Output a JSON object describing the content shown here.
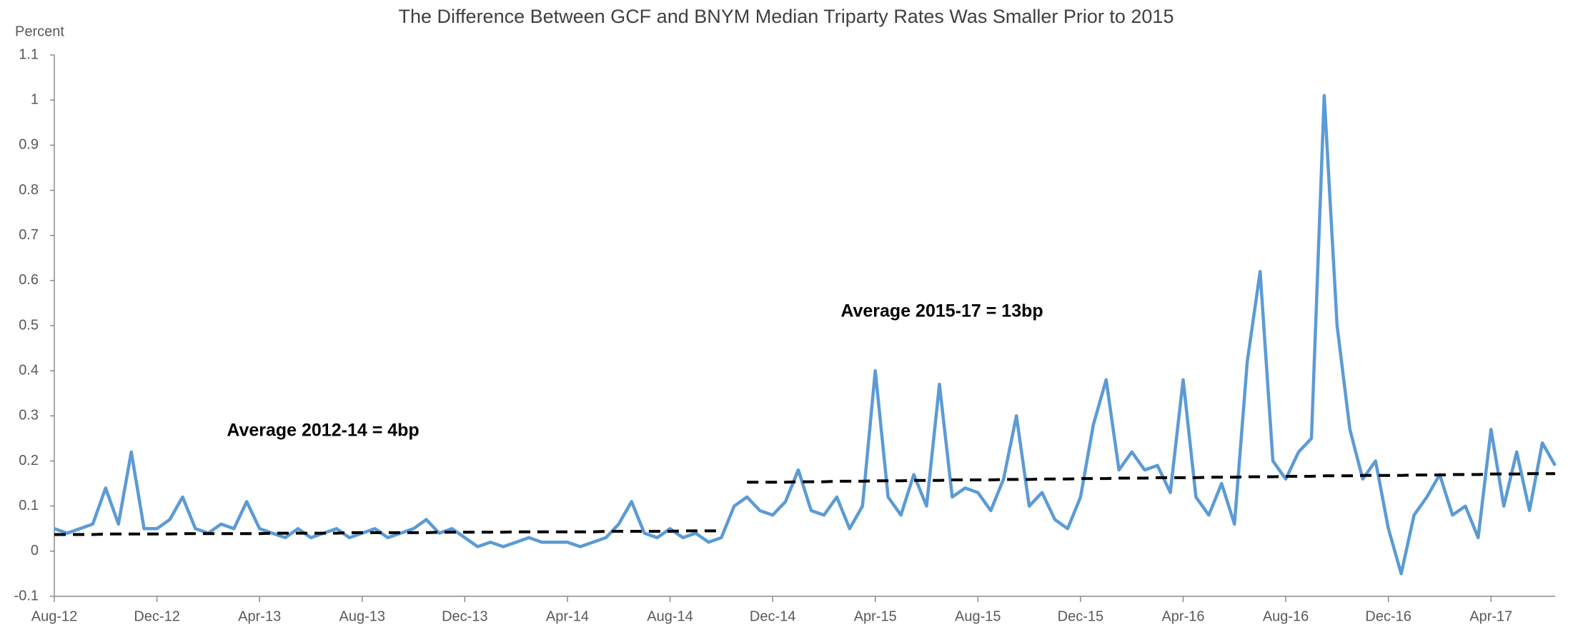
{
  "chart_data": {
    "type": "line",
    "title": "The Difference Between GCF and BNYM Median Triparty Rates Was Smaller Prior to 2015",
    "y_label": "Percent",
    "annotations": [
      "Average 2012-14 = 4bp",
      "Average 2015-17 = 13bp"
    ],
    "categories": [
      "Aug-12",
      null,
      null,
      null,
      null,
      null,
      null,
      null,
      "Dec-12",
      null,
      null,
      null,
      null,
      null,
      null,
      null,
      "Apr-13",
      null,
      null,
      null,
      null,
      null,
      null,
      null,
      "Aug-13",
      null,
      null,
      null,
      null,
      null,
      null,
      null,
      "Dec-13",
      null,
      null,
      null,
      null,
      null,
      null,
      null,
      "Apr-14",
      null,
      null,
      null,
      null,
      null,
      null,
      null,
      "Aug-14",
      null,
      null,
      null,
      null,
      null,
      null,
      null,
      "Dec-14",
      null,
      null,
      null,
      null,
      null,
      null,
      null,
      "Apr-15",
      null,
      null,
      null,
      null,
      null,
      null,
      null,
      "Aug-15",
      null,
      null,
      null,
      null,
      null,
      null,
      null,
      "Dec-15",
      null,
      null,
      null,
      null,
      null,
      null,
      null,
      "Apr-16",
      null,
      null,
      null,
      null,
      null,
      null,
      null,
      "Aug-16",
      null,
      null,
      null,
      null,
      null,
      null,
      null,
      "Dec-16",
      null,
      null,
      null,
      null,
      null,
      null,
      null,
      "Apr-17",
      null,
      null,
      null,
      null,
      null
    ],
    "series": [
      {
        "color": "#5b9bd5",
        "style": "solid",
        "values": [
          0.05,
          0.04,
          0.05,
          0.06,
          0.14,
          0.06,
          0.22,
          0.05,
          0.05,
          0.07,
          0.12,
          0.05,
          0.04,
          0.06,
          0.05,
          0.11,
          0.05,
          0.04,
          0.03,
          0.05,
          0.03,
          0.04,
          0.05,
          0.03,
          0.04,
          0.05,
          0.03,
          0.04,
          0.05,
          0.07,
          0.04,
          0.05,
          0.03,
          0.01,
          0.02,
          0.01,
          0.02,
          0.03,
          0.02,
          0.02,
          0.02,
          0.01,
          0.02,
          0.03,
          0.06,
          0.11,
          0.04,
          0.03,
          0.05,
          0.03,
          0.04,
          0.02,
          0.03,
          0.1,
          0.12,
          0.09,
          0.08,
          0.11,
          0.18,
          0.09,
          0.08,
          0.12,
          0.05,
          0.1,
          0.4,
          0.12,
          0.08,
          0.17,
          0.1,
          0.37,
          0.12,
          0.14,
          0.13,
          0.09,
          0.16,
          0.3,
          0.1,
          0.13,
          0.07,
          0.05,
          0.12,
          0.28,
          0.38,
          0.18,
          0.22,
          0.18,
          0.19,
          0.13,
          0.38,
          0.12,
          0.08,
          0.15,
          0.06,
          0.42,
          0.62,
          0.2,
          0.16,
          0.22,
          0.25,
          1.01,
          0.5,
          0.27,
          0.16,
          0.2,
          0.05,
          -0.05,
          0.08,
          0.12,
          0.17,
          0.08,
          0.1,
          0.03,
          0.27,
          0.1,
          0.22,
          0.09,
          0.24,
          0.19
        ]
      },
      {
        "color": "#000000",
        "style": "dashed",
        "values": [
          0.037,
          0.037,
          0.037,
          0.037,
          0.038,
          0.038,
          0.038,
          0.038,
          0.038,
          0.038,
          0.039,
          0.039,
          0.039,
          0.039,
          0.039,
          0.039,
          0.039,
          0.04,
          0.04,
          0.04,
          0.04,
          0.04,
          0.04,
          0.041,
          0.041,
          0.041,
          0.041,
          0.041,
          0.041,
          0.041,
          0.042,
          0.042,
          0.042,
          0.042,
          0.042,
          0.042,
          0.043,
          0.043,
          0.043,
          0.043,
          0.043,
          0.043,
          0.043,
          0.044,
          0.044,
          0.044,
          0.044,
          0.044,
          0.044,
          0.045,
          0.045,
          0.045,
          0.045,
          null,
          0.153,
          0.153,
          0.153,
          0.153,
          0.154,
          0.154,
          0.154,
          0.155,
          0.155,
          0.155,
          0.156,
          0.156,
          0.156,
          0.157,
          0.157,
          0.157,
          0.158,
          0.158,
          0.158,
          0.158,
          0.159,
          0.159,
          0.159,
          0.16,
          0.16,
          0.16,
          0.161,
          0.161,
          0.161,
          0.162,
          0.162,
          0.162,
          0.163,
          0.163,
          0.163,
          0.163,
          0.164,
          0.164,
          0.164,
          0.165,
          0.165,
          0.165,
          0.166,
          0.166,
          0.166,
          0.167,
          0.167,
          0.167,
          0.168,
          0.168,
          0.168,
          0.168,
          0.169,
          0.169,
          0.169,
          0.17,
          0.17,
          0.17,
          0.171,
          0.171,
          0.171,
          0.172,
          0.172,
          0.172
        ]
      }
    ],
    "ylim": [
      -0.1,
      1.1
    ],
    "yticks": [
      -0.1,
      0,
      0.1,
      0.2,
      0.3,
      0.4,
      0.5,
      0.6,
      0.7,
      0.8,
      0.9,
      1,
      1.1
    ],
    "grid": false
  }
}
